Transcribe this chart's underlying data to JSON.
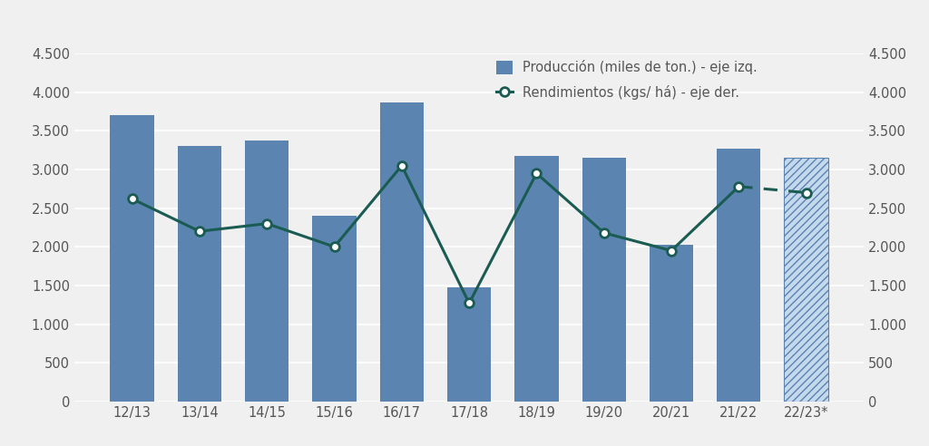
{
  "categories": [
    "12/13",
    "13/14",
    "14/15",
    "15/16",
    "16/17",
    "17/18",
    "18/19",
    "19/20",
    "20/21",
    "21/22",
    "22/23*"
  ],
  "production": [
    3700,
    3300,
    3370,
    2400,
    3870,
    1480,
    3180,
    3150,
    2030,
    3270,
    3150
  ],
  "rendimientos": [
    2620,
    2200,
    2300,
    2000,
    3050,
    1270,
    2950,
    2180,
    1950,
    2780,
    2700
  ],
  "bar_color": "#5b84b1",
  "bar_color_hatched_face": "#c5d9ed",
  "bar_color_hatched_edge": "#5b84b1",
  "hatch_pattern": "////",
  "line_color": "#1a5c52",
  "ylim": [
    0,
    4500
  ],
  "yticks": [
    0,
    500,
    1000,
    1500,
    2000,
    2500,
    3000,
    3500,
    4000,
    4500
  ],
  "legend_prod_label": "Producción (miles de ton.) - eje izq.",
  "legend_rend_label": "Rendimientos (kgs/ há) - eje der.",
  "background_color": "#f0f0f0",
  "plot_bg_color": "#f0f0f0",
  "grid_color": "#ffffff",
  "tick_label_color": "#555555",
  "font_size_ticks": 10.5,
  "font_size_legend": 10.5,
  "bar_width": 0.65
}
